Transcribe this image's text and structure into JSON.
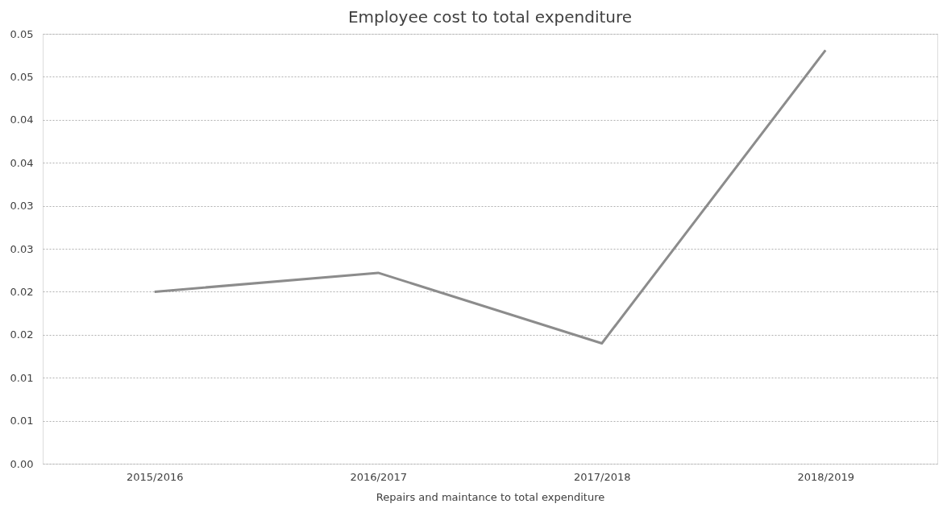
{
  "chart_data": {
    "type": "line",
    "title": "Employee cost to total expenditure",
    "xlabel": "Repairs and maintance to total expenditure",
    "categories": [
      "2015/2016",
      "2016/2017",
      "2017/2018",
      "2018/2019"
    ],
    "series": [
      {
        "color": "#8c8c8c",
        "values": [
          0.02,
          0.0222,
          0.014,
          0.0481
        ]
      }
    ],
    "ylim": [
      0,
      0.05
    ],
    "yticks": [
      {
        "value": 0,
        "label": "0.00"
      },
      {
        "value": 0.005,
        "label": "0.01"
      },
      {
        "value": 0.01,
        "label": "0.01"
      },
      {
        "value": 0.015,
        "label": "0.02"
      },
      {
        "value": 0.02,
        "label": "0.02"
      },
      {
        "value": 0.025,
        "label": "0.03"
      },
      {
        "value": 0.03,
        "label": "0.03"
      },
      {
        "value": 0.035,
        "label": "0.04"
      },
      {
        "value": 0.04,
        "label": "0.04"
      },
      {
        "value": 0.045,
        "label": "0.05"
      },
      {
        "value": 0.05,
        "label": "0.05"
      }
    ],
    "grid": "y",
    "marker": "none",
    "line_style": "solid",
    "legend": false
  }
}
